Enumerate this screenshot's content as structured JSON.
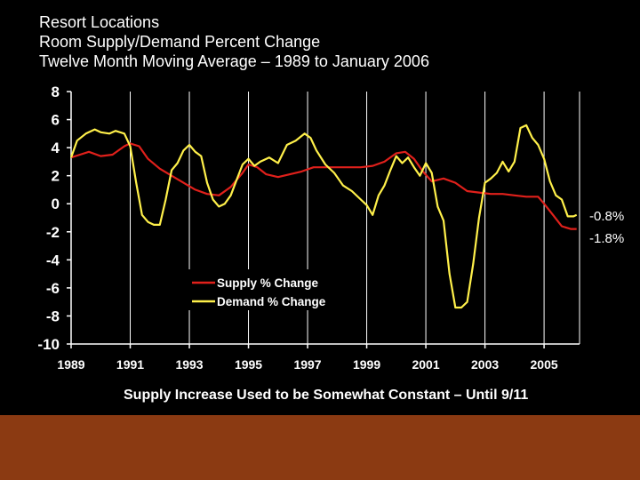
{
  "slide": {
    "title_lines": [
      "Resort Locations",
      "Room Supply/Demand Percent Change",
      "Twelve Month Moving Average – 1989 to January 2006"
    ],
    "caption": "Supply Increase Used to be Somewhat Constant – Until 9/11",
    "footer_color": "#8B3A12"
  },
  "chart_data": {
    "type": "line",
    "title": "Resort Locations Room Supply/Demand Percent Change, Twelve Month Moving Average – 1989 to January 2006",
    "xlabel": "",
    "ylabel": "",
    "xlim": [
      1989,
      2006.2
    ],
    "ylim": [
      -10,
      8
    ],
    "x_ticks": [
      "1989",
      "1991",
      "1993",
      "1995",
      "1997",
      "1999",
      "2001",
      "2003",
      "2005"
    ],
    "y_ticks": [
      "8",
      "6",
      "4",
      "2",
      "0",
      "-2",
      "-4",
      "-6",
      "-8",
      "-10"
    ],
    "grid": "vertical",
    "legend_position": "lower-middle",
    "end_labels": [
      "-0.8%",
      "-1.8%"
    ],
    "series": [
      {
        "name": "Supply % Change",
        "color": "#E0201B",
        "x": [
          1989.0,
          1989.3,
          1989.6,
          1990.0,
          1990.4,
          1990.8,
          1991.0,
          1991.3,
          1991.6,
          1992.0,
          1992.4,
          1992.8,
          1993.2,
          1993.6,
          1994.0,
          1994.4,
          1994.8,
          1995.0,
          1995.3,
          1995.6,
          1996.0,
          1996.4,
          1996.8,
          1997.2,
          1997.6,
          1998.0,
          1998.4,
          1998.8,
          1999.2,
          1999.6,
          2000.0,
          2000.3,
          2000.6,
          2000.9,
          2001.2,
          2001.6,
          2002.0,
          2002.4,
          2002.8,
          2003.2,
          2003.6,
          2004.0,
          2004.4,
          2004.8,
          2005.0,
          2005.3,
          2005.6,
          2005.9,
          2006.1
        ],
        "y": [
          3.3,
          3.5,
          3.7,
          3.4,
          3.5,
          4.1,
          4.3,
          4.1,
          3.2,
          2.5,
          2.0,
          1.5,
          1.0,
          0.7,
          0.6,
          1.2,
          2.2,
          2.8,
          2.6,
          2.1,
          1.9,
          2.1,
          2.3,
          2.6,
          2.6,
          2.6,
          2.6,
          2.6,
          2.7,
          3.0,
          3.6,
          3.7,
          3.2,
          2.3,
          1.6,
          1.8,
          1.5,
          0.9,
          0.8,
          0.7,
          0.7,
          0.6,
          0.5,
          0.5,
          0.0,
          -0.8,
          -1.6,
          -1.8,
          -1.8
        ]
      },
      {
        "name": "Demand % Change",
        "color": "#FFF04A",
        "x": [
          1989.0,
          1989.2,
          1989.5,
          1989.8,
          1990.0,
          1990.3,
          1990.5,
          1990.8,
          1991.0,
          1991.2,
          1991.4,
          1991.6,
          1991.8,
          1992.0,
          1992.2,
          1992.4,
          1992.6,
          1992.8,
          1993.0,
          1993.2,
          1993.4,
          1993.6,
          1993.8,
          1994.0,
          1994.2,
          1994.4,
          1994.6,
          1994.8,
          1995.0,
          1995.2,
          1995.4,
          1995.7,
          1996.0,
          1996.3,
          1996.6,
          1996.9,
          1997.1,
          1997.3,
          1997.6,
          1997.9,
          1998.2,
          1998.5,
          1998.8,
          1999.0,
          1999.2,
          1999.4,
          1999.6,
          1999.8,
          2000.0,
          2000.2,
          2000.4,
          2000.6,
          2000.8,
          2001.0,
          2001.2,
          2001.4,
          2001.6,
          2001.8,
          2002.0,
          2002.2,
          2002.4,
          2002.6,
          2002.8,
          2003.0,
          2003.2,
          2003.4,
          2003.6,
          2003.8,
          2004.0,
          2004.2,
          2004.4,
          2004.6,
          2004.8,
          2005.0,
          2005.2,
          2005.4,
          2005.6,
          2005.8,
          2006.0,
          2006.1
        ],
        "y": [
          3.3,
          4.5,
          5.0,
          5.3,
          5.1,
          5.0,
          5.2,
          5.0,
          4.1,
          1.5,
          -0.8,
          -1.3,
          -1.5,
          -1.5,
          0.3,
          2.4,
          2.9,
          3.8,
          4.2,
          3.7,
          3.4,
          1.5,
          0.3,
          -0.2,
          0.0,
          0.6,
          1.7,
          2.8,
          3.2,
          2.7,
          3.0,
          3.3,
          2.9,
          4.2,
          4.5,
          5.0,
          4.7,
          3.8,
          2.8,
          2.2,
          1.3,
          0.9,
          0.3,
          -0.1,
          -0.8,
          0.6,
          1.3,
          2.4,
          3.4,
          2.9,
          3.3,
          2.6,
          2.0,
          2.9,
          2.2,
          -0.2,
          -1.2,
          -5.0,
          -7.4,
          -7.4,
          -7.0,
          -4.3,
          -1.0,
          1.5,
          1.8,
          2.2,
          3.0,
          2.3,
          3.0,
          5.4,
          5.6,
          4.7,
          4.2,
          3.2,
          1.6,
          0.6,
          0.3,
          -0.9,
          -0.9,
          -0.8
        ]
      }
    ]
  }
}
